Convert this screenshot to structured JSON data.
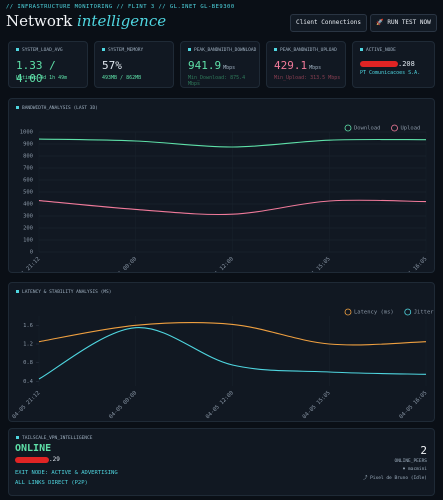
{
  "header": {
    "breadcrumb": "// INFRASTRUCTURE MONITORING // FLINT 3 // GL.INET GL-BE9300",
    "title_main": "Network",
    "title_accent": "intelligence",
    "buttons": [
      "Client Connections",
      "🚀 RUN TEST NOW"
    ]
  },
  "cards": [
    {
      "label": "SYSTEM_LOAD_AVG",
      "value": "1.33 / 4.00",
      "sub": "Uptime: 4d 1h 49m"
    },
    {
      "label": "SYSTEM_MEMORY",
      "value": "57%",
      "sub": "493MB / 862MB"
    },
    {
      "label": "PEAK_BANDWIDTH_DOWNLOAD",
      "value": "941.9",
      "unit": "Mbps",
      "sub": "Min_Download: 875.4 Mbps"
    },
    {
      "label": "PEAK_BANDWIDTH_UPLOAD",
      "value": "429.1",
      "unit": "Mbps",
      "sub": "Min_Upload: 313.5 Mbps"
    },
    {
      "label": "ACTIVE_NODE",
      "value": ".208",
      "sub": "PT Comunicacoes S.A."
    }
  ],
  "bandwidth_chart": {
    "type": "line",
    "title": "BANDWIDTH_ANALYSIS (LAST 3D)",
    "categories": [
      "04-05 21:12",
      "04-05 00:00",
      "04-05 12:00",
      "04-05 15:05",
      "04-05 16:05"
    ],
    "series": [
      {
        "name": "Download",
        "color": "#5ee0a8",
        "values": [
          941,
          925,
          875,
          932,
          936
        ]
      },
      {
        "name": "Upload",
        "color": "#f07a9a",
        "values": [
          429,
          355,
          315,
          425,
          420
        ]
      }
    ],
    "ylim": [
      0,
      1000
    ],
    "yticks": [
      0,
      100,
      200,
      300,
      400,
      500,
      600,
      700,
      800,
      900,
      1000
    ],
    "grid": true
  },
  "latency_chart": {
    "type": "line",
    "title": "LATENCY & STABILITY ANALYSIS (MS)",
    "categories": [
      "04-05 21:12",
      "04-05 00:00",
      "04-05 12:00",
      "04-05 15:05",
      "04-05 16:05"
    ],
    "series": [
      {
        "name": "Latency (ms)",
        "color": "#f0a040",
        "values": [
          1.25,
          1.6,
          1.62,
          1.2,
          1.25
        ]
      },
      {
        "name": "Jitter (ms)",
        "color": "#4fd6e0",
        "values": [
          0.45,
          1.55,
          0.75,
          0.6,
          0.55
        ]
      }
    ],
    "ylim": [
      0.3,
      1.8
    ],
    "yticks": [
      0.4,
      0.8,
      1.2,
      1.6
    ],
    "grid": false
  },
  "tailscale": {
    "title": "TAILSCALE_VPN_INTELLIGENCE",
    "status": "ONLINE",
    "ip": ".29",
    "exit_node": "EXIT NODE: ACTIVE & ADVERTISING",
    "links": "ALL LINKS DIRECT (P2P)",
    "peer_count": "2",
    "peer_label": "ONLINE_PEERS",
    "peers": [
      "macmini",
      "Pixel de Bruno (Idle)"
    ]
  }
}
